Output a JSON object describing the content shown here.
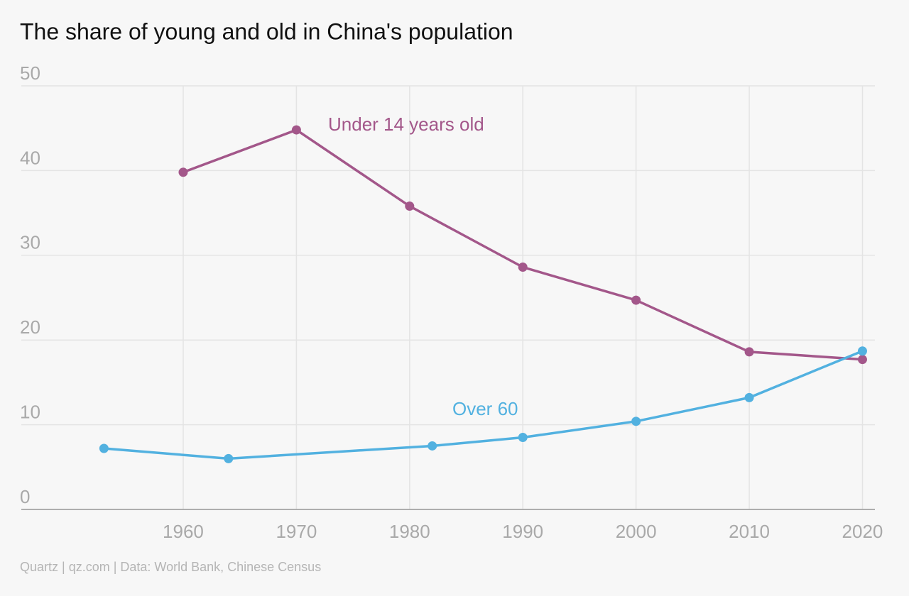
{
  "chart_data": {
    "type": "line",
    "title": "The share of young and old in China's population",
    "source": "Quartz | qz.com | Data: World Bank, Chinese Census",
    "xlim": [
      1945.7,
      2021.1
    ],
    "xticks": [
      1960,
      1970,
      1980,
      1990,
      2000,
      2010,
      2020
    ],
    "ylim": [
      0,
      50
    ],
    "yticks": [
      0,
      10,
      20,
      30,
      40,
      50
    ],
    "grid": true,
    "series": [
      {
        "name": "Under 14 years old",
        "color": "#a3578a",
        "x": [
          1960,
          1970,
          1980,
          1990,
          2000,
          2010,
          2020
        ],
        "values": [
          39.8,
          44.8,
          35.8,
          28.6,
          24.7,
          18.6,
          17.7
        ]
      },
      {
        "name": "Over 60",
        "color": "#52b1e0",
        "x": [
          1953,
          1964,
          1982,
          1990,
          2000,
          2010,
          2020
        ],
        "values": [
          7.2,
          6.0,
          7.5,
          8.5,
          10.4,
          13.2,
          18.7
        ]
      }
    ]
  }
}
